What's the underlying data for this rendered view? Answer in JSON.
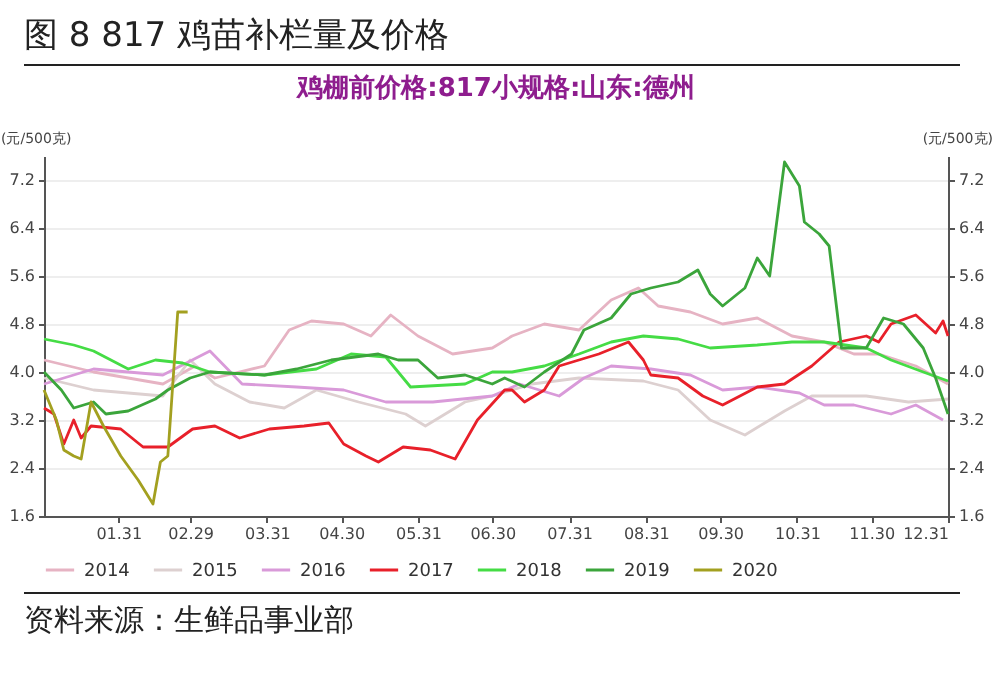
{
  "chart_data": {
    "type": "line",
    "title": "图 8 817 鸡苗补栏量及价格",
    "subtitle": "鸡棚前价格:817小规格:山东:德州",
    "ylabel": "(元/500克)",
    "y2label": "(元/500克)",
    "annotations": [
      "资料来源：生鲜品事业部"
    ],
    "xlim": [
      "--01-01",
      "--12-31"
    ],
    "xticks": [
      {
        "value": "--01-31",
        "label": "01.31"
      },
      {
        "value": "--02-29",
        "label": "02.29"
      },
      {
        "value": "--03-31",
        "label": "03.31"
      },
      {
        "value": "--04-30",
        "label": "04.30"
      },
      {
        "value": "--05-31",
        "label": "05.31"
      },
      {
        "value": "--06-30",
        "label": "06.30"
      },
      {
        "value": "--07-31",
        "label": "07.31"
      },
      {
        "value": "--08-31",
        "label": "08.31"
      },
      {
        "value": "--09-30",
        "label": "09.30"
      },
      {
        "value": "--10-31",
        "label": "10.31"
      },
      {
        "value": "--11-30",
        "label": "11.30"
      },
      {
        "value": "--12-31",
        "label": "12.31"
      }
    ],
    "ylim": [
      1.6,
      7.6
    ],
    "yticks": [
      1.6,
      2.4,
      3.2,
      {
        "value": 4,
        "label": "4.0"
      },
      4.8,
      5.6,
      6.4,
      7.2
    ],
    "y2lim": [
      1.6,
      7.6
    ],
    "y2ticks": [
      1.6,
      2.4,
      3.2,
      {
        "value": 4,
        "label": "4.0"
      },
      4.8,
      5.6,
      6.4,
      7.2
    ],
    "grid": "y",
    "legend": "bottom",
    "line_style": "solid",
    "marker": "none",
    "series": [
      {
        "name": "2014",
        "color": "#e6b3c3",
        "x": [
          "--01-01",
          "--01-21",
          "--02-18",
          "--03-02",
          "--03-10",
          "--03-30",
          "--04-09",
          "--04-18",
          "--05-01",
          "--05-12",
          "--05-20",
          "--05-31",
          "--06-14",
          "--06-30",
          "--07-08",
          "--07-21",
          "--08-04",
          "--08-17",
          "--08-28",
          "--09-05",
          "--09-18",
          "--10-01",
          "--10-15",
          "--10-29",
          "--11-11",
          "--11-23",
          "--12-03",
          "--12-18",
          "--12-31"
        ],
        "values": [
          4.2,
          4.0,
          3.8,
          4.1,
          3.9,
          4.1,
          4.7,
          4.85,
          4.8,
          4.6,
          4.95,
          4.6,
          4.3,
          4.4,
          4.6,
          4.8,
          4.7,
          5.2,
          5.4,
          5.1,
          5.0,
          4.8,
          4.9,
          4.6,
          4.5,
          4.3,
          4.3,
          4.1,
          3.8
        ]
      },
      {
        "name": "2015",
        "color": "#ddd0d0",
        "x": [
          "--01-01",
          "--01-21",
          "--02-18",
          "--02-29",
          "--03-10",
          "--03-24",
          "--04-07",
          "--04-20",
          "--05-07",
          "--05-26",
          "--06-03",
          "--06-19",
          "--06-30",
          "--07-16",
          "--08-04",
          "--08-30",
          "--09-13",
          "--09-26",
          "--10-10",
          "--10-20",
          "--10-26",
          "--11-06",
          "--11-28",
          "--12-15",
          "--12-31"
        ],
        "values": [
          3.9,
          3.7,
          3.6,
          4.2,
          3.8,
          3.5,
          3.4,
          3.7,
          3.5,
          3.3,
          3.1,
          3.5,
          3.6,
          3.8,
          3.9,
          3.85,
          3.7,
          3.2,
          2.95,
          3.2,
          3.35,
          3.6,
          3.6,
          3.5,
          3.55
        ]
      },
      {
        "name": "2016",
        "color": "#d99ad9",
        "x": [
          "--01-01",
          "--01-21",
          "--02-18",
          "--03-08",
          "--03-21",
          "--04-12",
          "--05-01",
          "--05-18",
          "--06-06",
          "--06-30",
          "--07-11",
          "--07-27",
          "--08-06",
          "--08-17",
          "--09-02",
          "--09-18",
          "--10-01",
          "--10-15",
          "--11-01",
          "--11-11",
          "--11-23",
          "--12-08",
          "--12-18",
          "--12-29"
        ],
        "values": [
          3.8,
          4.05,
          3.95,
          4.35,
          3.8,
          3.75,
          3.7,
          3.5,
          3.5,
          3.6,
          3.8,
          3.6,
          3.9,
          4.1,
          4.05,
          3.95,
          3.7,
          3.75,
          3.65,
          3.45,
          3.45,
          3.3,
          3.45,
          3.2
        ]
      },
      {
        "name": "2017",
        "color": "#e8202a",
        "x": [
          "--01-01",
          "--01-05",
          "--01-09",
          "--01-13",
          "--01-16",
          "--01-20",
          "--02-01",
          "--02-10",
          "--02-20",
          "--03-01",
          "--03-10",
          "--03-20",
          "--04-01",
          "--04-15",
          "--04-25",
          "--05-01",
          "--05-10",
          "--05-15",
          "--05-25",
          "--06-05",
          "--06-15",
          "--06-24",
          "--07-05",
          "--07-08",
          "--07-13",
          "--07-21",
          "--07-27",
          "--08-12",
          "--08-24",
          "--08-30",
          "--09-02",
          "--09-13",
          "--09-23",
          "--10-01",
          "--10-15",
          "--10-26",
          "--11-06",
          "--11-17",
          "--11-28",
          "--12-03",
          "--12-08",
          "--12-18",
          "--12-26",
          "--12-29",
          "--12-31"
        ],
        "values": [
          3.4,
          3.3,
          2.8,
          3.2,
          2.9,
          3.1,
          3.05,
          2.75,
          2.75,
          3.05,
          3.1,
          2.9,
          3.05,
          3.1,
          3.15,
          2.8,
          2.6,
          2.5,
          2.75,
          2.7,
          2.55,
          3.2,
          3.7,
          3.7,
          3.5,
          3.7,
          4.1,
          4.3,
          4.5,
          4.2,
          3.95,
          3.9,
          3.6,
          3.45,
          3.75,
          3.8,
          4.1,
          4.5,
          4.6,
          4.5,
          4.8,
          4.95,
          4.65,
          4.85,
          4.6
        ]
      },
      {
        "name": "2018",
        "color": "#45dc45",
        "x": [
          "--01-01",
          "--01-13",
          "--01-21",
          "--02-04",
          "--02-15",
          "--02-26",
          "--03-08",
          "--03-30",
          "--04-20",
          "--05-04",
          "--05-18",
          "--05-28",
          "--06-19",
          "--06-30",
          "--07-08",
          "--07-21",
          "--08-04",
          "--08-17",
          "--08-30",
          "--09-13",
          "--09-26",
          "--10-15",
          "--10-29",
          "--11-11",
          "--11-28",
          "--12-08",
          "--12-21",
          "--12-31"
        ],
        "values": [
          4.55,
          4.45,
          4.35,
          4.05,
          4.2,
          4.15,
          4.0,
          3.95,
          4.05,
          4.3,
          4.25,
          3.75,
          3.8,
          4.0,
          4.0,
          4.1,
          4.3,
          4.5,
          4.6,
          4.55,
          4.4,
          4.45,
          4.5,
          4.5,
          4.4,
          4.2,
          4.0,
          3.85
        ]
      },
      {
        "name": "2019",
        "color": "#3ba53b",
        "x": [
          "--01-01",
          "--01-08",
          "--01-13",
          "--01-21",
          "--01-26",
          "--02-04",
          "--02-15",
          "--02-20",
          "--02-29",
          "--03-08",
          "--03-30",
          "--04-12",
          "--04-26",
          "--05-15",
          "--05-23",
          "--05-31",
          "--06-08",
          "--06-19",
          "--06-30",
          "--07-05",
          "--07-13",
          "--07-21",
          "--08-01",
          "--08-06",
          "--08-17",
          "--08-25",
          "--09-02",
          "--09-13",
          "--09-21",
          "--09-26",
          "--10-01",
          "--10-10",
          "--10-15",
          "--10-20",
          "--10-26",
          "--11-01",
          "--11-03",
          "--11-09",
          "--11-13",
          "--11-18",
          "--11-28",
          "--12-05",
          "--12-13",
          "--12-21",
          "--12-26",
          "--12-31"
        ],
        "values": [
          4.0,
          3.7,
          3.4,
          3.5,
          3.3,
          3.35,
          3.55,
          3.7,
          3.9,
          4.0,
          3.95,
          4.05,
          4.2,
          4.3,
          4.2,
          4.2,
          3.9,
          3.95,
          3.8,
          3.9,
          3.75,
          4.0,
          4.3,
          4.7,
          4.9,
          5.3,
          5.4,
          5.5,
          5.7,
          5.3,
          5.1,
          5.4,
          5.9,
          5.6,
          7.5,
          7.1,
          6.5,
          6.3,
          6.1,
          4.4,
          4.4,
          4.9,
          4.8,
          4.4,
          3.9,
          3.3
        ]
      },
      {
        "name": "2020",
        "color": "#a3a020",
        "x": [
          "--01-01",
          "--01-06",
          "--01-09",
          "--01-13",
          "--01-16",
          "--01-20",
          "--01-25",
          "--02-01",
          "--02-08",
          "--02-14",
          "--02-17",
          "--02-20",
          "--02-24",
          "--02-28"
        ],
        "values": [
          3.7,
          3.2,
          2.7,
          2.6,
          2.55,
          3.5,
          3.1,
          2.6,
          2.2,
          1.8,
          2.5,
          2.6,
          5.0,
          5.0
        ]
      }
    ]
  }
}
